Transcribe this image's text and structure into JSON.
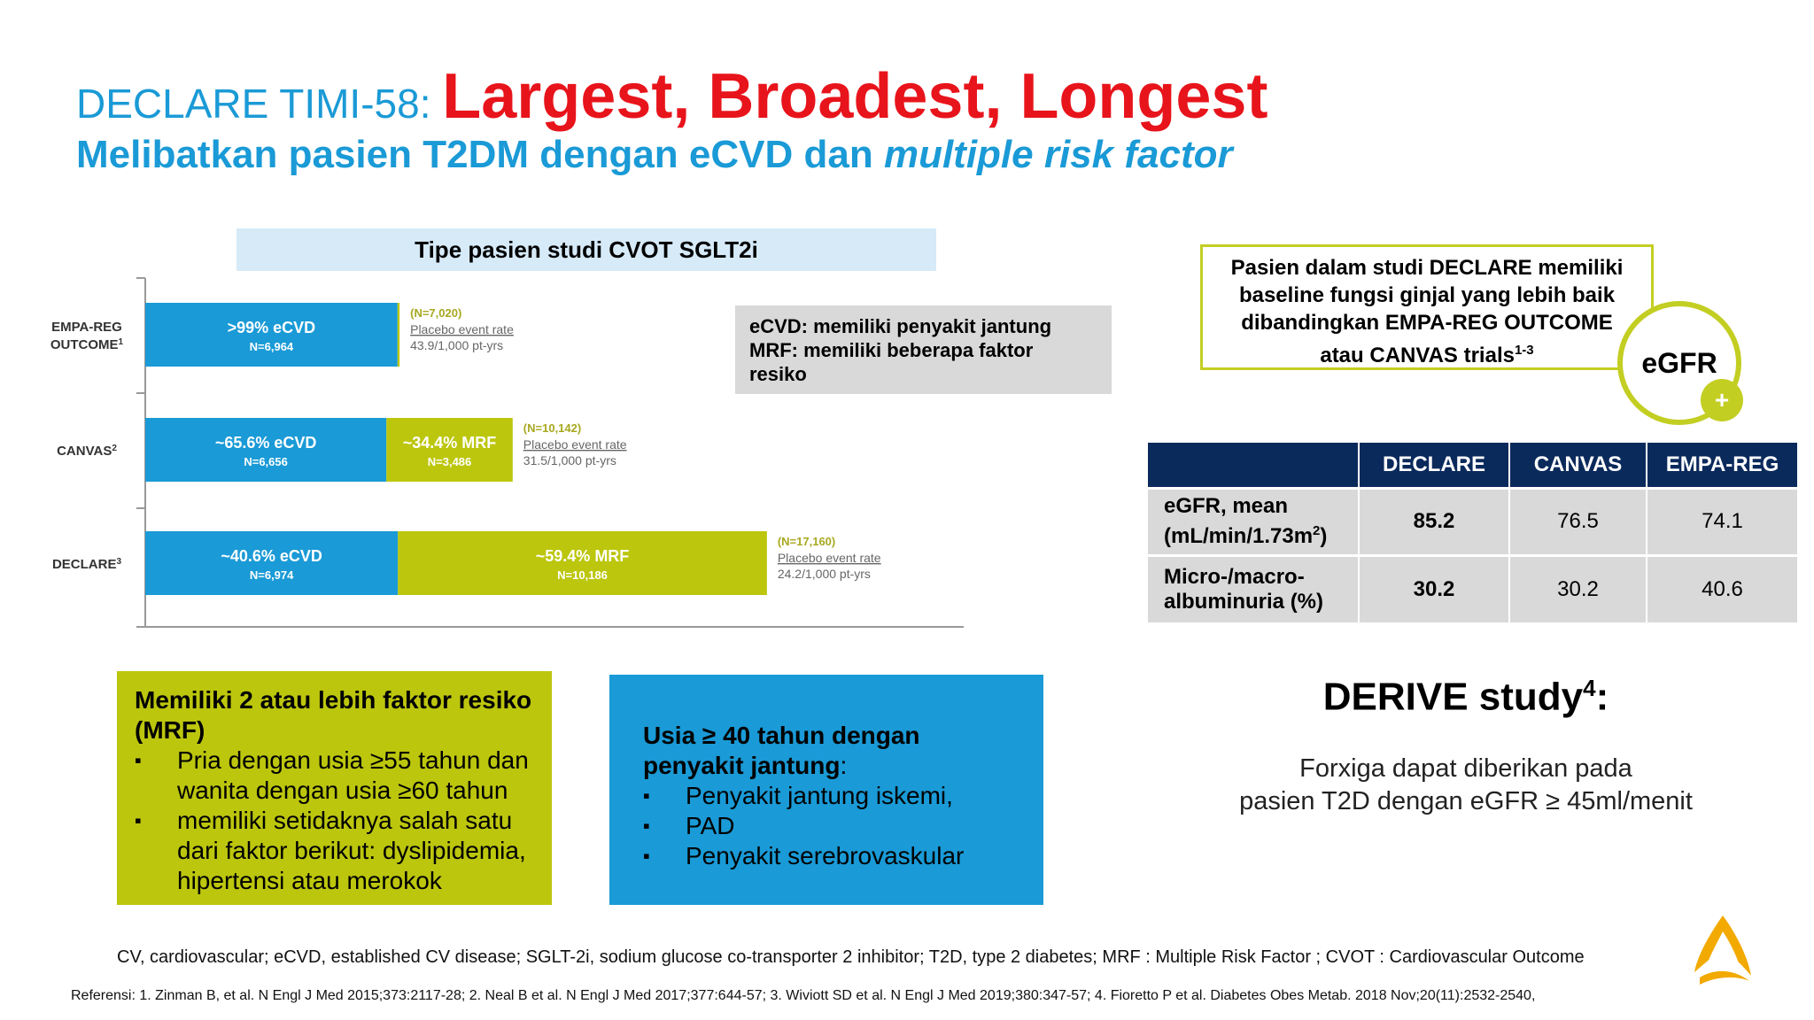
{
  "title": {
    "prefix": "DECLARE TIMI-58: ",
    "main": "Largest, Broadest, Longest",
    "subtitle_normal": "Melibatkan pasien T2DM dengan eCVD dan ",
    "subtitle_italic": "multiple risk factor"
  },
  "chart_header": "Tipe pasien studi CVOT SGLT2i",
  "chart_data": {
    "type": "bar",
    "orientation": "horizontal-stacked",
    "categories": [
      {
        "name": "EMPA-REG",
        "name_line2": "OUTCOME",
        "sup": "1"
      },
      {
        "name": "CANVAS",
        "name_line2": "",
        "sup": "2"
      },
      {
        "name": "DECLARE",
        "name_line2": "",
        "sup": "3"
      }
    ],
    "series": [
      {
        "name": "eCVD",
        "color": "#1a9ad6",
        "values": [
          6964,
          6656,
          6974
        ],
        "labels": [
          ">99% eCVD",
          "~65.6% eCVD",
          "~40.6% eCVD"
        ],
        "n_labels": [
          "N=6,964",
          "N=6,656",
          "N=6,974"
        ]
      },
      {
        "name": "MRF",
        "color": "#bcc60d",
        "values": [
          56,
          3486,
          10186
        ],
        "labels": [
          "",
          "~34.4% MRF",
          "~59.4% MRF"
        ],
        "n_labels": [
          "",
          "N=3,486",
          "N=10,186"
        ]
      }
    ],
    "totals": [
      "(N=7,020)",
      "(N=10,142)",
      "(N=17,160)"
    ],
    "placebo_label": "Placebo event rate",
    "placebo_rates": [
      "43.9/1,000 pt-yrs",
      "31.5/1,000 pt-yrs",
      "24.2/1,000 pt-yrs"
    ]
  },
  "definition": {
    "line1": "eCVD: memiliki penyakit jantung",
    "line2": "MRF: memiliki beberapa faktor",
    "line3": "resiko"
  },
  "callout": {
    "line1": "Pasien dalam studi DECLARE memiliki",
    "line2": "baseline fungsi ginjal yang lebih baik",
    "line3": "dibandingkan EMPA-REG OUTCOME",
    "line4": "atau CANVAS trials",
    "sup": "1-3",
    "badge": "eGFR",
    "plus": "+"
  },
  "table": {
    "headers": [
      "DECLARE",
      "CANVAS",
      "EMPA-REG"
    ],
    "rows": [
      {
        "label_line1": "eGFR, mean",
        "label_line2": "(mL/min/1.73m",
        "label_sup": "2",
        "label_end": ")",
        "values": [
          "85.2",
          "76.5",
          "74.1"
        ]
      },
      {
        "label_line1": "Micro-/macro-",
        "label_line2": "albuminuria (%)",
        "label_sup": "",
        "label_end": "",
        "values": [
          "30.2",
          "30.2",
          "40.6"
        ]
      }
    ]
  },
  "mrf_box": {
    "title_line1": "Memiliki 2 atau lebih faktor resiko",
    "title_line2": "(MRF)",
    "bullets": [
      {
        "line1": "Pria dengan usia ≥55 tahun dan",
        "line2": "wanita dengan usia ≥60 tahun"
      },
      {
        "line1": "memiliki setidaknya salah satu",
        "line2": "dari faktor berikut: dyslipidemia,",
        "line3": "hipertensi atau merokok"
      }
    ]
  },
  "age_box": {
    "title_line1": "Usia ≥ 40 tahun dengan",
    "title_line2": "penyakit jantung",
    "title_colon": ":",
    "bullets": [
      "Penyakit jantung iskemi,",
      "PAD",
      "Penyakit serebrovaskular"
    ]
  },
  "derive": {
    "title": "DERIVE study",
    "sup": "4",
    "colon": ":",
    "line1": "Forxiga dapat diberikan pada",
    "line2": "pasien T2D dengan eGFR ≥ 45ml/menit"
  },
  "footer": {
    "abbreviations": "CV, cardiovascular; eCVD, established CV disease; SGLT-2i, sodium glucose co-transporter 2 inhibitor; T2D, type 2 diabetes; MRF : Multiple Risk Factor ; CVOT : Cardiovascular Outcome",
    "references": "Referensi: 1. Zinman B, et al. N Engl J Med 2015;373:2117-28;  2. Neal B et al. N Engl J Med 2017;377:644-57;  3. Wiviott SD et al. N Engl J Med 2019;380:347-57; 4. Fioretto P et al. Diabetes Obes Metab. 2018 Nov;20(11):2532-2540,"
  },
  "colors": {
    "blue": "#1a9ad6",
    "red": "#e8141b",
    "olive": "#bcc60d",
    "navy": "#0b2a5c",
    "gray": "#d9d9d9",
    "logo": "#f2a900"
  }
}
